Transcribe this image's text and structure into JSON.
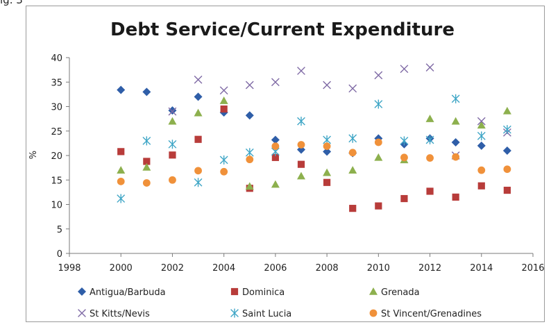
{
  "figure_caption_fragment": "ig. 3",
  "chart_data": {
    "type": "scatter",
    "title": "Debt Service/Current Expenditure",
    "xlabel": "",
    "ylabel": "%",
    "xlim": [
      1998,
      2016
    ],
    "ylim": [
      0,
      40
    ],
    "xticks": [
      1998,
      2000,
      2002,
      2004,
      2006,
      2008,
      2010,
      2012,
      2014,
      2016
    ],
    "yticks": [
      0,
      5,
      10,
      15,
      20,
      25,
      30,
      35,
      40
    ],
    "grid": false,
    "legend_position": "bottom",
    "x": [
      2000,
      2001,
      2002,
      2003,
      2004,
      2005,
      2006,
      2007,
      2008,
      2009,
      2010,
      2011,
      2012,
      2013,
      2014,
      2015
    ],
    "series": [
      {
        "name": "Antigua/Barbuda",
        "marker": "diamond",
        "color": "#2f5ea8",
        "values": [
          33.4,
          33.0,
          29.2,
          32.0,
          28.8,
          28.2,
          23.2,
          21.2,
          20.8,
          20.5,
          23.5,
          22.3,
          23.5,
          22.7,
          22.0,
          21.0
        ]
      },
      {
        "name": "Dominica",
        "marker": "square",
        "color": "#b83c3a",
        "values": [
          20.8,
          18.8,
          20.1,
          23.3,
          29.5,
          13.3,
          19.6,
          18.2,
          14.5,
          9.2,
          9.7,
          11.2,
          12.7,
          11.5,
          13.8,
          12.9
        ]
      },
      {
        "name": "Grenada",
        "marker": "triangle",
        "color": "#8db04e",
        "values": [
          17.0,
          17.6,
          27.0,
          28.7,
          31.2,
          13.7,
          14.1,
          15.8,
          16.5,
          17.0,
          19.6,
          19.1,
          27.5,
          27.0,
          26.2,
          29.1
        ]
      },
      {
        "name": "St Kitts/Nevis",
        "marker": "x",
        "color": "#7f6aa5",
        "values": [
          null,
          null,
          29.0,
          35.5,
          33.3,
          34.4,
          35.0,
          37.3,
          34.4,
          33.7,
          36.4,
          37.7,
          38.0,
          20.0,
          27.0,
          24.7
        ]
      },
      {
        "name": "Saint Lucia",
        "marker": "asterisk",
        "color": "#3fa6c6",
        "values": [
          11.2,
          23.0,
          22.3,
          14.5,
          19.1,
          20.6,
          20.8,
          27.0,
          23.2,
          23.5,
          30.5,
          23.0,
          23.2,
          31.6,
          24.0,
          25.3
        ]
      },
      {
        "name": "St Vincent/Grenadines",
        "marker": "circle",
        "color": "#f0913a",
        "values": [
          14.7,
          14.4,
          15.0,
          16.9,
          16.7,
          19.2,
          21.9,
          22.2,
          21.9,
          20.6,
          22.7,
          19.6,
          19.5,
          19.7,
          17.0,
          17.2
        ]
      }
    ]
  }
}
